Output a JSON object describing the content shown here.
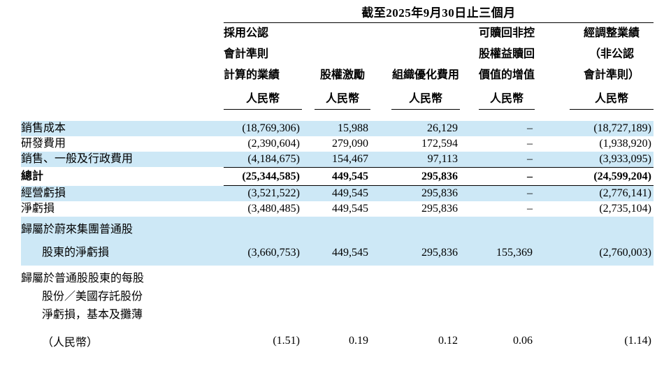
{
  "colors": {
    "row_highlight": "#CDE8F6"
  },
  "table": {
    "period_header": "截至2025年9月30日止三個月",
    "columns": [
      {
        "header_lines": [
          "採用公認",
          "會計準則",
          "計算的業績"
        ],
        "currency": "人民幣"
      },
      {
        "header_lines": [
          "股權激勵"
        ],
        "currency": "人民幣"
      },
      {
        "header_lines": [
          "組織優化費用"
        ],
        "currency": "人民幣"
      },
      {
        "header_lines": [
          "可贖回非控",
          "股權益贖回",
          "價值的增值"
        ],
        "currency": "人民幣"
      },
      {
        "header_lines": [
          "經調整業績",
          "（非公認",
          "會計準則）"
        ],
        "currency": "人民幣"
      }
    ],
    "rows": [
      {
        "label_lines": [
          "銷售成本"
        ],
        "values": [
          "(18,769,306)",
          "15,988",
          "26,129",
          "–",
          "(18,727,189)"
        ],
        "highlight": true,
        "bold": false
      },
      {
        "label_lines": [
          "研發費用"
        ],
        "values": [
          "(2,390,604)",
          "279,090",
          "172,594",
          "–",
          "(1,938,920)"
        ],
        "highlight": false,
        "bold": false
      },
      {
        "label_lines": [
          "銷售、一般及行政費用"
        ],
        "values": [
          "(4,184,675)",
          "154,467",
          "97,113",
          "–",
          "(3,933,095)"
        ],
        "highlight": true,
        "bold": false
      },
      {
        "label_lines": [
          "總計"
        ],
        "values": [
          "(25,344,585)",
          "449,545",
          "295,836",
          "–",
          "(24,599,204)"
        ],
        "highlight": false,
        "bold": true
      },
      {
        "label_lines": [
          "經營虧損"
        ],
        "values": [
          "(3,521,522)",
          "449,545",
          "295,836",
          "–",
          "(2,776,141)"
        ],
        "highlight": true,
        "bold": false
      },
      {
        "label_lines": [
          "淨虧損"
        ],
        "values": [
          "(3,480,485)",
          "449,545",
          "295,836",
          "–",
          "(2,735,104)"
        ],
        "highlight": false,
        "bold": false
      },
      {
        "label_lines": [
          "歸屬於蔚來集團普通股",
          "股東的淨虧損"
        ],
        "values": [
          "(3,660,753)",
          "449,545",
          "295,836",
          "155,369",
          "(2,760,003)"
        ],
        "highlight": true,
        "bold": false
      },
      {
        "label_lines": [
          "歸屬於普通股股東的每股",
          "股份／美國存託股份",
          "淨虧損，基本及攤薄",
          "（人民幣）"
        ],
        "values": [
          "(1.51)",
          "0.19",
          "0.12",
          "0.06",
          "(1.14)"
        ],
        "highlight": false,
        "bold": false
      }
    ]
  }
}
